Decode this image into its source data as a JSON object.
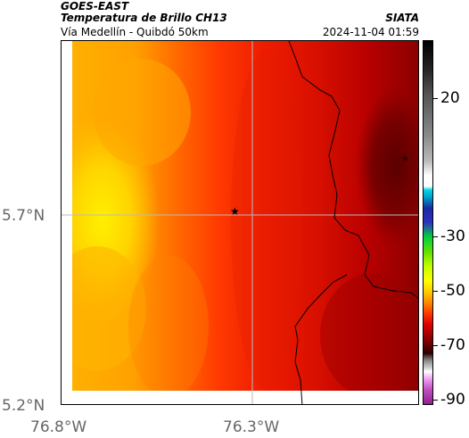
{
  "header": {
    "satellite": "GOES-EAST",
    "product": "Temperatura de Brillo CH13",
    "route": "Vía Medellín - Quibdó 50km",
    "brand": "SIATA",
    "timestamp": "2024-11-04 01:59"
  },
  "axes": {
    "lat_labels": [
      "5.7°N",
      "5.2°N"
    ],
    "lon_labels": [
      "76.8°W",
      "76.3°W"
    ]
  },
  "colorbar": {
    "tick_labels": [
      "20",
      "-30",
      "-50",
      "-70",
      "-90"
    ],
    "ticks": [
      20,
      -30,
      -50,
      -70,
      -90
    ]
  },
  "markers": [
    {
      "name": "quibdo-star",
      "symbol": "star"
    },
    {
      "name": "medellin-star",
      "symbol": "star"
    }
  ],
  "colors": {
    "warm_yellow": "#f2d400",
    "orange": "#ff9900",
    "red": "#e82000",
    "dark_red": "#9a0000"
  }
}
